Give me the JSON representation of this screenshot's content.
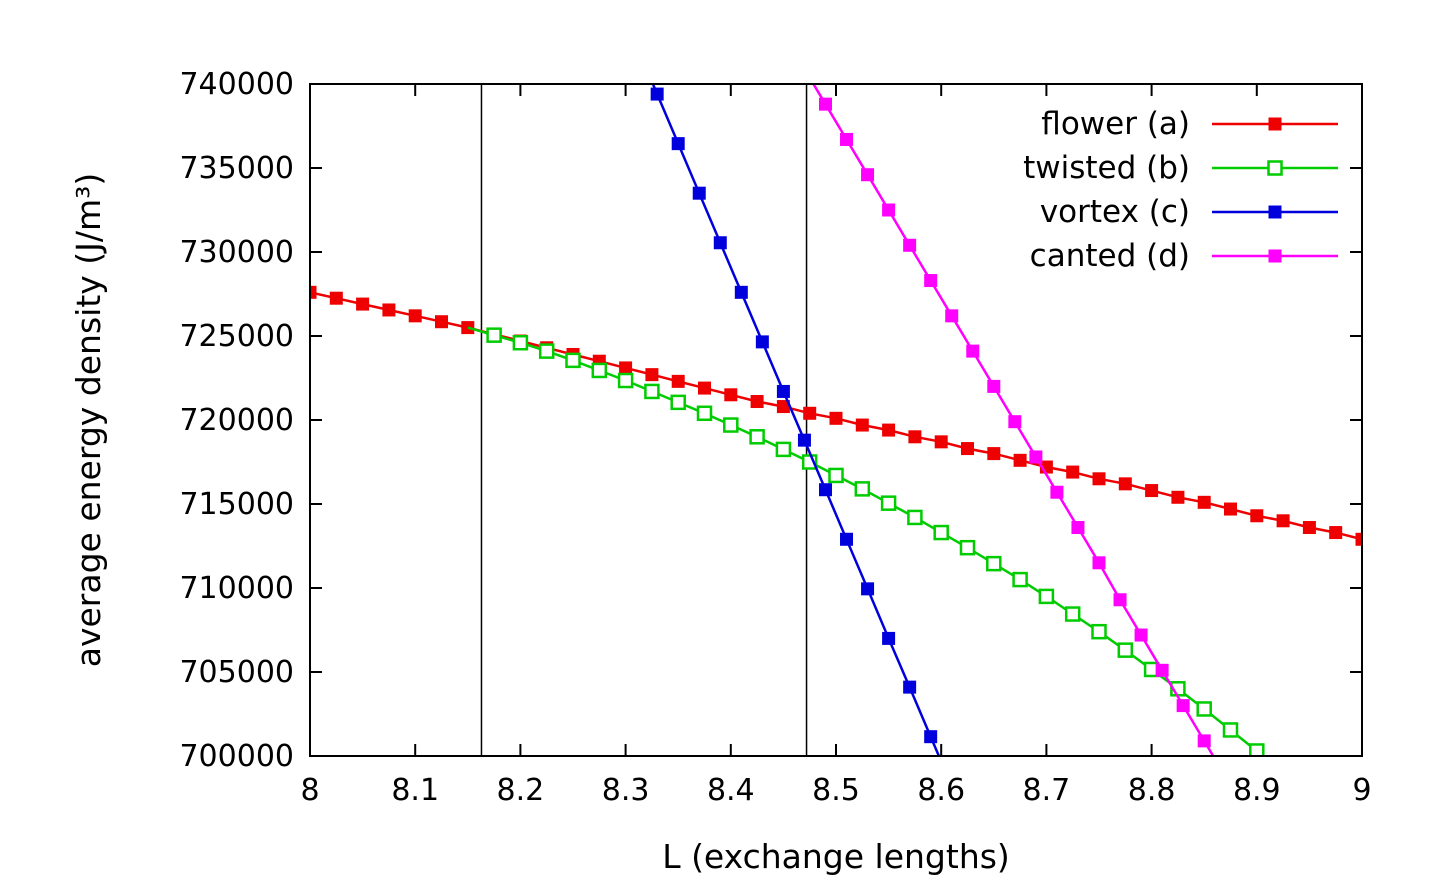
{
  "figure": {
    "background": "#ffffff",
    "border_color": "#000000"
  },
  "chart_data": {
    "type": "line",
    "title": "",
    "xlabel": "L (exchange lengths)",
    "ylabel": "average energy density (J/m³)",
    "xlim": [
      8,
      9
    ],
    "ylim": [
      700000,
      740000
    ],
    "grid": false,
    "legend_position": "top-right",
    "x_ticks": [
      8,
      8.1,
      8.2,
      8.3,
      8.4,
      8.5,
      8.6,
      8.7,
      8.8,
      8.9,
      9
    ],
    "x_tick_labels": [
      "8",
      "8.1",
      "8.2",
      "8.3",
      "8.4",
      "8.5",
      "8.6",
      "8.7",
      "8.8",
      "8.9",
      "9"
    ],
    "y_ticks": [
      700000,
      705000,
      710000,
      715000,
      720000,
      725000,
      730000,
      735000,
      740000
    ],
    "y_tick_labels": [
      "700000",
      "705000",
      "710000",
      "715000",
      "720000",
      "725000",
      "730000",
      "735000",
      "740000"
    ],
    "vertical_lines": [
      8.163,
      8.472
    ],
    "series": [
      {
        "id": "flower",
        "name": "flower (a)",
        "color": "#ee0000",
        "marker": "square-filled",
        "points": [
          [
            8.0,
            727600
          ],
          [
            8.025,
            727250
          ],
          [
            8.05,
            726900
          ],
          [
            8.075,
            726550
          ],
          [
            8.1,
            726200
          ],
          [
            8.125,
            725850
          ],
          [
            8.15,
            725500
          ],
          [
            8.175,
            725100
          ],
          [
            8.2,
            724700
          ],
          [
            8.225,
            724300
          ],
          [
            8.25,
            723900
          ],
          [
            8.275,
            723500
          ],
          [
            8.3,
            723100
          ],
          [
            8.325,
            722700
          ],
          [
            8.35,
            722300
          ],
          [
            8.375,
            721900
          ],
          [
            8.4,
            721500
          ],
          [
            8.425,
            721100
          ],
          [
            8.45,
            720800
          ],
          [
            8.475,
            720400
          ],
          [
            8.5,
            720100
          ],
          [
            8.525,
            719700
          ],
          [
            8.55,
            719400
          ],
          [
            8.575,
            719000
          ],
          [
            8.6,
            718700
          ],
          [
            8.625,
            718300
          ],
          [
            8.65,
            718000
          ],
          [
            8.675,
            717600
          ],
          [
            8.7,
            717200
          ],
          [
            8.725,
            716900
          ],
          [
            8.75,
            716500
          ],
          [
            8.775,
            716200
          ],
          [
            8.8,
            715800
          ],
          [
            8.825,
            715400
          ],
          [
            8.85,
            715100
          ],
          [
            8.875,
            714700
          ],
          [
            8.9,
            714300
          ],
          [
            8.925,
            714000
          ],
          [
            8.95,
            713600
          ],
          [
            8.975,
            713300
          ],
          [
            9.0,
            712900
          ]
        ]
      },
      {
        "id": "twisted",
        "name": "twisted (b)",
        "color": "#00cc00",
        "marker": "square-open",
        "points": [
          [
            8.175,
            725050
          ],
          [
            8.2,
            724600
          ],
          [
            8.225,
            724100
          ],
          [
            8.25,
            723550
          ],
          [
            8.275,
            722950
          ],
          [
            8.3,
            722350
          ],
          [
            8.325,
            721700
          ],
          [
            8.35,
            721050
          ],
          [
            8.375,
            720400
          ],
          [
            8.4,
            719700
          ],
          [
            8.425,
            719000
          ],
          [
            8.45,
            718250
          ],
          [
            8.475,
            717500
          ],
          [
            8.5,
            716700
          ],
          [
            8.525,
            715900
          ],
          [
            8.55,
            715050
          ],
          [
            8.575,
            714200
          ],
          [
            8.6,
            713300
          ],
          [
            8.625,
            712400
          ],
          [
            8.65,
            711450
          ],
          [
            8.675,
            710500
          ],
          [
            8.7,
            709500
          ],
          [
            8.725,
            708450
          ],
          [
            8.75,
            707400
          ],
          [
            8.775,
            706300
          ],
          [
            8.8,
            705150
          ],
          [
            8.825,
            704000
          ],
          [
            8.85,
            702800
          ],
          [
            8.875,
            701550
          ],
          [
            8.9,
            700300
          ]
        ]
      },
      {
        "id": "vortex",
        "name": "vortex (c)",
        "color": "#0000dd",
        "marker": "square-filled",
        "points": [
          [
            8.33,
            739400
          ],
          [
            8.35,
            736450
          ],
          [
            8.37,
            733500
          ],
          [
            8.39,
            730550
          ],
          [
            8.41,
            727600
          ],
          [
            8.43,
            724650
          ],
          [
            8.45,
            721700
          ],
          [
            8.47,
            718800
          ],
          [
            8.49,
            715850
          ],
          [
            8.51,
            712900
          ],
          [
            8.53,
            709950
          ],
          [
            8.55,
            707000
          ],
          [
            8.57,
            704100
          ],
          [
            8.59,
            701150
          ]
        ]
      },
      {
        "id": "canted",
        "name": "canted (d)",
        "color": "#ff00ff",
        "marker": "square-filled",
        "points": [
          [
            8.49,
            738800
          ],
          [
            8.51,
            736700
          ],
          [
            8.53,
            734600
          ],
          [
            8.55,
            732500
          ],
          [
            8.57,
            730400
          ],
          [
            8.59,
            728300
          ],
          [
            8.61,
            726200
          ],
          [
            8.63,
            724100
          ],
          [
            8.65,
            722000
          ],
          [
            8.67,
            719900
          ],
          [
            8.69,
            717800
          ],
          [
            8.71,
            715700
          ],
          [
            8.73,
            713600
          ],
          [
            8.75,
            711500
          ],
          [
            8.77,
            709300
          ],
          [
            8.79,
            707200
          ],
          [
            8.81,
            705100
          ],
          [
            8.83,
            703000
          ],
          [
            8.85,
            700900
          ]
        ]
      }
    ]
  }
}
